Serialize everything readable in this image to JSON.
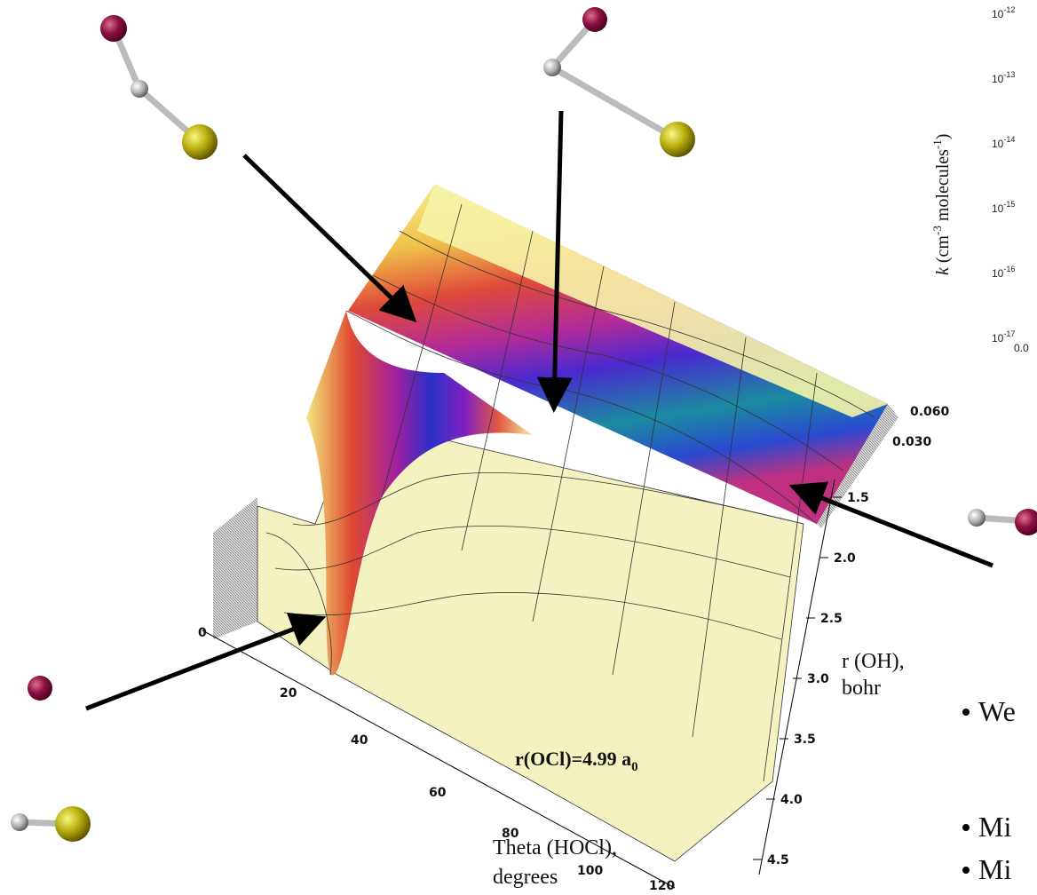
{
  "plot": {
    "theta_axis": {
      "label_lines": [
        "Theta (HOCl),",
        "degrees"
      ],
      "ticks": [
        "0",
        "20",
        "40",
        "60",
        "80",
        "100",
        "120"
      ]
    },
    "r_axis": {
      "label_lines": [
        "r (OH),",
        "bohr"
      ],
      "ticks": [
        "1.5",
        "2.0",
        "2.5",
        "3.0",
        "3.5",
        "4.0",
        "4.5"
      ]
    },
    "z_axis": {
      "ticks": [
        "0.060",
        "0.030"
      ]
    },
    "annotation": {
      "text": "r(OCl)=4.99 a",
      "subscript": "0"
    }
  },
  "side_chart": {
    "y_label": {
      "italic": "k",
      "part1": " (cm",
      "sup1": "-3",
      "part2": " molecules",
      "sup2": "-1",
      "part3": ")"
    },
    "y_ticks": [
      {
        "base": "10",
        "exp": "-12"
      },
      {
        "base": "10",
        "exp": "-13"
      },
      {
        "base": "10",
        "exp": "-14"
      },
      {
        "base": "10",
        "exp": "-15"
      },
      {
        "base": "10",
        "exp": "-16"
      },
      {
        "base": "10",
        "exp": "-17"
      }
    ],
    "x_first_tick": "0.0"
  },
  "bullets": [
    "We",
    "Mi",
    "Mi"
  ]
}
